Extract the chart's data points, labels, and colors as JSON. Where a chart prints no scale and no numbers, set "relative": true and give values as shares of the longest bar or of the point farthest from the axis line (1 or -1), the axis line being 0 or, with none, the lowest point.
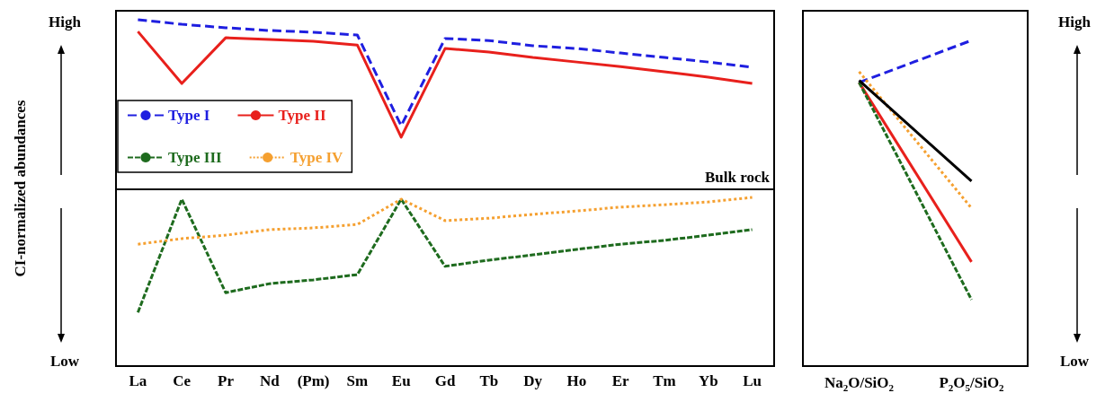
{
  "chart_data": [
    {
      "type": "line",
      "relative": true,
      "ylabel": "CI-normalized abundances",
      "annotations": [
        "High",
        "Low"
      ],
      "marker": "none",
      "legend": "left",
      "categories": [
        "La",
        "Ce",
        "Pr",
        "Nd",
        "(Pm)",
        "Sm",
        "Eu",
        "Gd",
        "Tb",
        "Dy",
        "Ho",
        "Er",
        "Tm",
        "Yb",
        "Lu"
      ],
      "series": [
        {
          "name": "Type I",
          "color": "#1f1fe0",
          "line_style": "dashed",
          "values": [
            1.0,
            0.987,
            0.977,
            0.969,
            0.964,
            0.956,
            0.694,
            0.946,
            0.94,
            0.925,
            0.917,
            0.904,
            0.891,
            0.878,
            0.863
          ]
        },
        {
          "name": "Type II",
          "color": "#e8201c",
          "line_style": "solid",
          "values": [
            0.966,
            0.816,
            0.948,
            0.943,
            0.938,
            0.927,
            0.661,
            0.917,
            0.907,
            0.891,
            0.878,
            0.865,
            0.85,
            0.834,
            0.816
          ]
        },
        {
          "name": "Type III",
          "color": "#1e6b1e",
          "line_style": "dashed",
          "values": [
            0.155,
            0.482,
            0.212,
            0.238,
            0.249,
            0.264,
            0.482,
            0.288,
            0.306,
            0.321,
            0.337,
            0.352,
            0.363,
            0.378,
            0.394
          ]
        },
        {
          "name": "Type IV",
          "color": "#f5a030",
          "line_style": "dotted",
          "values": [
            0.352,
            0.368,
            0.378,
            0.394,
            0.399,
            0.409,
            0.482,
            0.42,
            0.427,
            0.438,
            0.448,
            0.459,
            0.466,
            0.474,
            0.487
          ]
        }
      ],
      "ref_lines": [
        {
          "axis": "y",
          "value": 0.508,
          "label": "Bulk rock",
          "color": "#000000"
        }
      ]
    },
    {
      "type": "line",
      "relative": true,
      "annotations": [
        "High",
        "Low"
      ],
      "marker": "none",
      "categories": [
        "Na$_{2}$O/SiO$_{2}$",
        "P$_{2}$O$_{5}$/SiO$_{2}$"
      ],
      "series": [
        {
          "color": "#1f1fe0",
          "line_style": "dashed",
          "values": [
            0.871,
            1.0
          ]
        },
        {
          "color": "#e8201c",
          "line_style": "solid",
          "values": [
            0.871,
            0.32
          ]
        },
        {
          "color": "#1e6b1e",
          "line_style": "dashed",
          "values": [
            0.871,
            0.204
          ]
        },
        {
          "color": "#f5a030",
          "line_style": "dotted",
          "values": [
            0.904,
            0.485
          ]
        },
        {
          "color": "#000000",
          "line_style": "solid",
          "values": [
            0.877,
            0.568
          ]
        }
      ]
    }
  ]
}
